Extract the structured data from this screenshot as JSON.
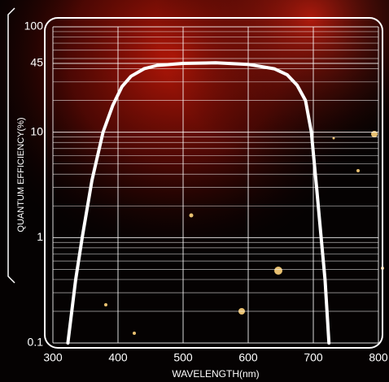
{
  "chart_data": {
    "type": "line",
    "x_label": "WAVELENGTH(nm)",
    "y_label": "QUANTUM EFFICIENCY(%)",
    "x": [
      323,
      335,
      345,
      360,
      377,
      392,
      406,
      420,
      440,
      460,
      500,
      550,
      600,
      640,
      660,
      675,
      688,
      697,
      705,
      712,
      718,
      724
    ],
    "series": [
      {
        "color": "#ffffff",
        "values": [
          0.1,
          0.4,
          1,
          3.5,
          10,
          18,
          27,
          34,
          40,
          43,
          45,
          45.5,
          44,
          40,
          35,
          28,
          20,
          10,
          3,
          1,
          0.4,
          0.1
        ]
      }
    ],
    "xlim": [
      300,
      800
    ],
    "xticks": [
      300,
      400,
      500,
      600,
      700,
      800
    ],
    "ylim": [
      0.1,
      100
    ],
    "yticks": [
      0.1,
      1,
      10,
      45,
      100
    ],
    "y_minor_gridlines": [
      0.2,
      0.3,
      0.4,
      0.5,
      0.6,
      0.7,
      0.8,
      0.9,
      2,
      3,
      4,
      5,
      6,
      7,
      8,
      9,
      20,
      30,
      40,
      50,
      60,
      70,
      80,
      90
    ],
    "log_y": true,
    "grid": true
  }
}
